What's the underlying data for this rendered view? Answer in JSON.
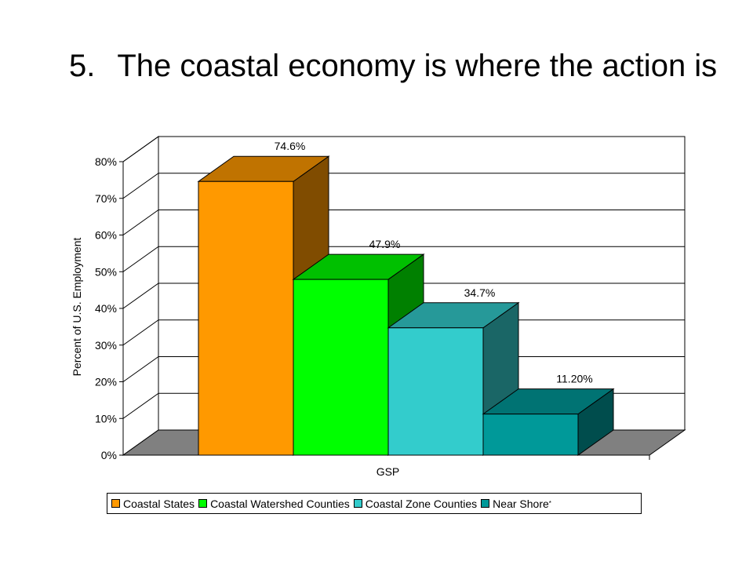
{
  "slide": {
    "number": "5.",
    "title": "The coastal economy is where the action is"
  },
  "chart_data": {
    "type": "bar",
    "style": "3d",
    "categories": [
      "GSP"
    ],
    "xlabel": "GSP",
    "ylabel": "Percent of U.S. Employment",
    "ylim": [
      0,
      80
    ],
    "yticks": [
      "0%",
      "10%",
      "20%",
      "30%",
      "40%",
      "50%",
      "60%",
      "70%",
      "80%"
    ],
    "grid": true,
    "legend_position": "bottom",
    "series": [
      {
        "name": "Coastal States",
        "values": [
          74.6
        ],
        "label": "74.6%",
        "color": "#FF9900",
        "side": "#804C00",
        "top": "#C07300"
      },
      {
        "name": "Coastal Watershed Counties",
        "values": [
          47.9
        ],
        "label": "47.9%",
        "color": "#00FF00",
        "side": "#008000",
        "top": "#00C000"
      },
      {
        "name": "Coastal Zone Counties",
        "values": [
          34.7
        ],
        "label": "34.7%",
        "color": "#33CCCC",
        "side": "#1A6666",
        "top": "#269999"
      },
      {
        "name": "Near Shore",
        "values": [
          11.2
        ],
        "label": "11.20%",
        "color": "#009999",
        "side": "#004D4D",
        "top": "#007373",
        "footnote": "*"
      }
    ],
    "floor_color": "#808080"
  }
}
